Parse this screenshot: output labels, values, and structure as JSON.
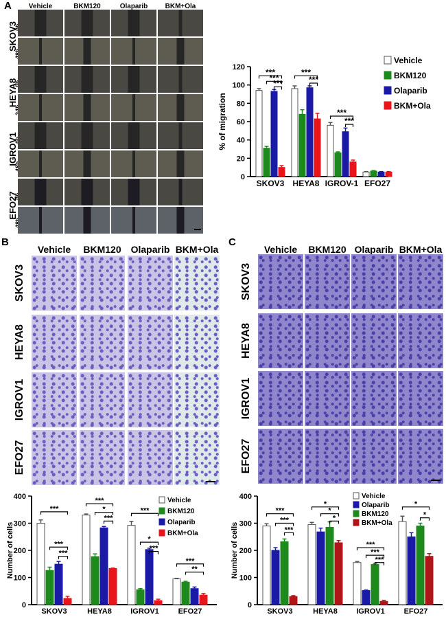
{
  "panels": {
    "A": {
      "label": "A",
      "columns": [
        "Vehicle",
        "BKM120",
        "Olaparib",
        "BKM+Ola"
      ],
      "rows": [
        {
          "name": "SKOV3",
          "times": [
            "0h",
            "48h"
          ]
        },
        {
          "name": "HEYA8",
          "times": [
            "0h",
            "24h"
          ]
        },
        {
          "name": "IGROV1",
          "times": [
            "0h",
            "48h"
          ]
        },
        {
          "name": "EFO27",
          "times": [
            "0h",
            "48h"
          ]
        }
      ]
    },
    "B": {
      "label": "B",
      "columns": [
        "Vehicle",
        "BKM120",
        "Olaparib",
        "BKM+Ola"
      ],
      "rows": [
        "SKOV3",
        "HEYA8",
        "IGROV1",
        "EFO27"
      ]
    },
    "C": {
      "label": "C",
      "columns": [
        "Vehicle",
        "BKM120",
        "Olaparib",
        "BKM+Ola"
      ],
      "rows": [
        "SKOV3",
        "HEYA8",
        "IGROV1",
        "EFO27"
      ]
    }
  },
  "colors": {
    "Vehicle": "#ffffff",
    "BKM120": "#1e8a1e",
    "Olaparib": "#1a1aa6",
    "BKM+Ola": "#e8161b",
    "BKM+Ola_C": "#b01518",
    "stainB": "#6a5cc0",
    "stainC": "#4a3fa8"
  },
  "chart_data": [
    {
      "id": "A",
      "type": "bar",
      "ylabel": "% of migration",
      "ylim": [
        0,
        120
      ],
      "yticks": [
        0,
        20,
        40,
        60,
        80,
        100,
        120
      ],
      "categories": [
        "SKOV3",
        "HEYA8",
        "IGROV-1",
        "EFO27"
      ],
      "legend_placement": "top-right",
      "series": [
        {
          "name": "Vehicle",
          "values": [
            94,
            96,
            56,
            5
          ],
          "errors": [
            2,
            3,
            3,
            0.5
          ]
        },
        {
          "name": "BKM120",
          "values": [
            31,
            68,
            26,
            6
          ],
          "errors": [
            2,
            5,
            1,
            0.5
          ]
        },
        {
          "name": "Olaparib",
          "values": [
            93,
            97,
            49,
            5
          ],
          "errors": [
            2,
            2,
            4,
            0.5
          ]
        },
        {
          "name": "BKM+Ola",
          "values": [
            10,
            63,
            16,
            5
          ],
          "errors": [
            2,
            6,
            2,
            0.5
          ]
        }
      ],
      "annotations": [
        {
          "cat": 0,
          "from": 0,
          "to": 3,
          "y": 110,
          "text": "***"
        },
        {
          "cat": 0,
          "from": 1,
          "to": 3,
          "y": 104,
          "text": "***"
        },
        {
          "cat": 0,
          "from": 2,
          "to": 3,
          "y": 98,
          "text": "***"
        },
        {
          "cat": 1,
          "from": 0,
          "to": 3,
          "y": 110,
          "text": "***"
        },
        {
          "cat": 1,
          "from": 2,
          "to": 3,
          "y": 102,
          "text": "***"
        },
        {
          "cat": 2,
          "from": 0,
          "to": 3,
          "y": 66,
          "text": "***"
        },
        {
          "cat": 2,
          "from": 2,
          "to": 3,
          "y": 57,
          "text": "***"
        }
      ]
    },
    {
      "id": "B",
      "type": "bar",
      "ylabel": "Number of cells",
      "ylim": [
        0,
        400
      ],
      "yticks": [
        0,
        100,
        200,
        300,
        400
      ],
      "categories": [
        "SKOV3",
        "HEYA8",
        "IGROV1",
        "EFO27"
      ],
      "legend_placement": "top-right",
      "series": [
        {
          "name": "Vehicle",
          "values": [
            300,
            330,
            292,
            95
          ],
          "errors": [
            12,
            4,
            15,
            2
          ]
        },
        {
          "name": "BKM120",
          "values": [
            126,
            177,
            55,
            83
          ],
          "errors": [
            12,
            10,
            4,
            3
          ]
        },
        {
          "name": "Olaparib",
          "values": [
            149,
            283,
            203,
            59
          ],
          "errors": [
            10,
            5,
            5,
            6
          ]
        },
        {
          "name": "BKM+Ola",
          "values": [
            23,
            133,
            15,
            35
          ],
          "errors": [
            8,
            2,
            5,
            6
          ]
        }
      ],
      "annotations": [
        {
          "cat": 0,
          "from": 0,
          "to": 3,
          "y": 342,
          "text": "***"
        },
        {
          "cat": 0,
          "from": 1,
          "to": 3,
          "y": 212,
          "text": "***"
        },
        {
          "cat": 0,
          "from": 2,
          "to": 3,
          "y": 178,
          "text": "***"
        },
        {
          "cat": 1,
          "from": 0,
          "to": 3,
          "y": 372,
          "text": "***"
        },
        {
          "cat": 1,
          "from": 1,
          "to": 3,
          "y": 340,
          "text": "*"
        },
        {
          "cat": 1,
          "from": 2,
          "to": 3,
          "y": 308,
          "text": "***"
        },
        {
          "cat": 2,
          "from": 0,
          "to": 3,
          "y": 336,
          "text": "***"
        },
        {
          "cat": 2,
          "from": 1,
          "to": 3,
          "y": 230,
          "text": "*"
        },
        {
          "cat": 2,
          "from": 2,
          "to": 3,
          "y": 196,
          "text": "***"
        },
        {
          "cat": 3,
          "from": 0,
          "to": 3,
          "y": 150,
          "text": "***"
        },
        {
          "cat": 3,
          "from": 1,
          "to": 3,
          "y": 120,
          "text": "**"
        }
      ]
    },
    {
      "id": "C",
      "type": "bar",
      "ylabel": "Number of cells",
      "ylim": [
        0,
        400
      ],
      "yticks": [
        0,
        100,
        200,
        300,
        400
      ],
      "categories": [
        "SKOV3",
        "HEYA8",
        "IGROV1",
        "EFO27"
      ],
      "legend_placement": "top-left",
      "series": [
        {
          "name": "Vehicle",
          "values": [
            290,
            295,
            155,
            306
          ],
          "errors": [
            8,
            8,
            4,
            20
          ]
        },
        {
          "name": "Olaparib",
          "values": [
            200,
            268,
            52,
            250
          ],
          "errors": [
            10,
            14,
            2,
            15
          ]
        },
        {
          "name": "BKM120",
          "values": [
            232,
            285,
            148,
            290
          ],
          "errors": [
            10,
            20,
            4,
            10
          ]
        },
        {
          "name": "BKM+Ola",
          "values": [
            30,
            228,
            12,
            178
          ],
          "errors": [
            3,
            8,
            4,
            10
          ]
        }
      ],
      "annotations": [
        {
          "cat": 0,
          "from": 0,
          "to": 3,
          "y": 335,
          "text": "***"
        },
        {
          "cat": 0,
          "from": 1,
          "to": 3,
          "y": 300,
          "text": "***"
        },
        {
          "cat": 0,
          "from": 2,
          "to": 3,
          "y": 265,
          "text": "***"
        },
        {
          "cat": 1,
          "from": 0,
          "to": 3,
          "y": 360,
          "text": "*"
        },
        {
          "cat": 1,
          "from": 1,
          "to": 3,
          "y": 335,
          "text": "*"
        },
        {
          "cat": 1,
          "from": 2,
          "to": 3,
          "y": 308,
          "text": "*"
        },
        {
          "cat": 2,
          "from": 0,
          "to": 3,
          "y": 210,
          "text": "***"
        },
        {
          "cat": 2,
          "from": 1,
          "to": 3,
          "y": 182,
          "text": "***"
        },
        {
          "cat": 2,
          "from": 2,
          "to": 3,
          "y": 155,
          "text": "***"
        },
        {
          "cat": 3,
          "from": 0,
          "to": 3,
          "y": 360,
          "text": "*"
        },
        {
          "cat": 3,
          "from": 2,
          "to": 3,
          "y": 320,
          "text": "*"
        }
      ]
    }
  ]
}
